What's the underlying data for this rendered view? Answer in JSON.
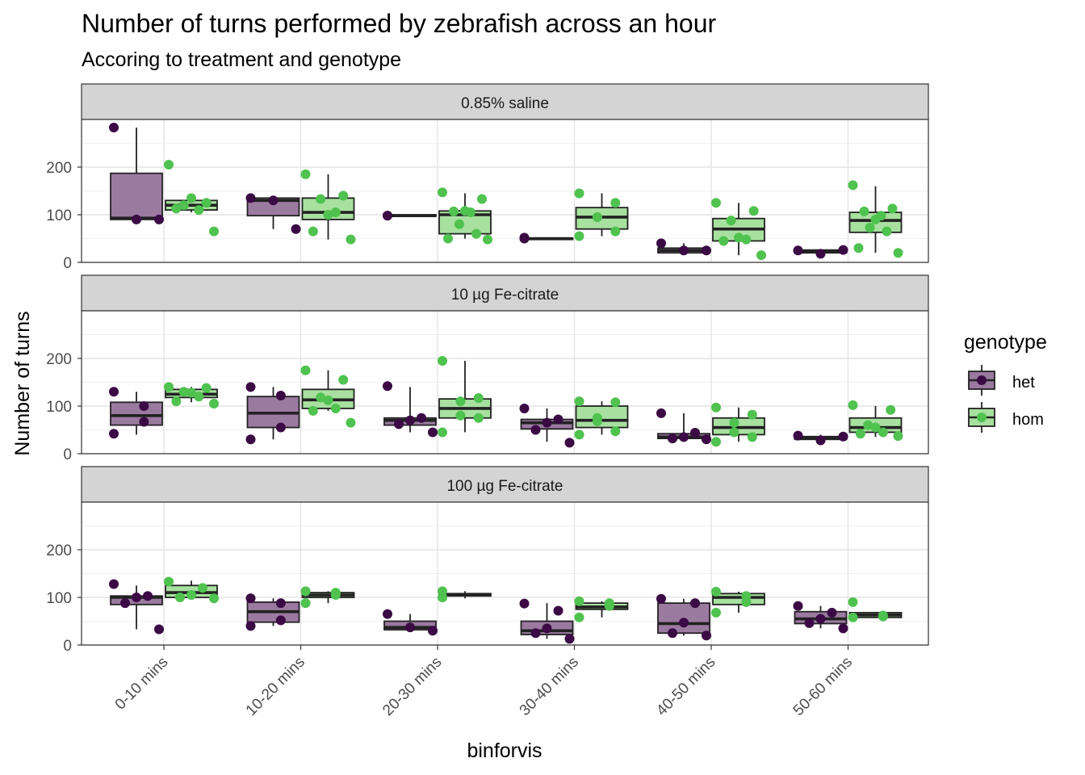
{
  "chart_data": {
    "type": "boxplot",
    "title": "Number of turns performed by zebrafish across an hour",
    "subtitle": "Accoring to treatment and genotype",
    "xlabel": "binforvis",
    "ylabel": "Number of turns",
    "categories": [
      "0-10 mins",
      "10-20 mins",
      "20-30 mins",
      "30-40 mins",
      "40-50 mins",
      "50-60 mins"
    ],
    "ylim": [
      0,
      300
    ],
    "yticks": [
      0,
      100,
      200
    ],
    "grid": true,
    "legend": {
      "title": "genotype",
      "position": "right",
      "items": [
        {
          "label": "het",
          "fill": "#9b7aa0",
          "point": "#3b0a45"
        },
        {
          "label": "hom",
          "fill": "#a8e0a0",
          "point": "#4fc24f"
        }
      ]
    },
    "facets": [
      {
        "label": "0.85% saline",
        "groups": [
          {
            "cat": 0,
            "genotype": "het",
            "box": [
              89,
              90,
              93,
              187,
              283
            ],
            "points": [
              283,
              90,
              90
            ]
          },
          {
            "cat": 0,
            "genotype": "hom",
            "box": [
              105,
              110,
              120,
              130,
              135
            ],
            "points": [
              205,
              125,
              120,
              135,
              110,
              113,
              65
            ]
          },
          {
            "cat": 1,
            "genotype": "het",
            "box": [
              70,
              98,
              130,
              135,
              137
            ],
            "points": [
              135,
              130,
              70
            ]
          },
          {
            "cat": 1,
            "genotype": "hom",
            "box": [
              48,
              90,
              105,
              135,
              185
            ],
            "points": [
              185,
              140,
              133,
              100,
              105,
              65,
              48
            ]
          },
          {
            "cat": 2,
            "genotype": "het",
            "box": [
              97,
              97,
              98,
              100,
              100
            ],
            "points": [
              98,
              98
            ]
          },
          {
            "cat": 2,
            "genotype": "hom",
            "box": [
              50,
              60,
              100,
              108,
              145
            ],
            "points": [
              147,
              133,
              107,
              105,
              108,
              80,
              60,
              50,
              48
            ]
          },
          {
            "cat": 3,
            "genotype": "het",
            "box": [
              48,
              48,
              50,
              51,
              52
            ],
            "points": [
              50,
              52
            ]
          },
          {
            "cat": 3,
            "genotype": "hom",
            "box": [
              55,
              70,
              95,
              115,
              145
            ],
            "points": [
              145,
              125,
              95,
              95,
              65,
              55
            ]
          },
          {
            "cat": 4,
            "genotype": "het",
            "box": [
              20,
              20,
              25,
              30,
              40
            ],
            "points": [
              40,
              25,
              25
            ]
          },
          {
            "cat": 4,
            "genotype": "hom",
            "box": [
              15,
              45,
              70,
              92,
              125
            ],
            "points": [
              125,
              108,
              88,
              52,
              48,
              45,
              15
            ]
          },
          {
            "cat": 5,
            "genotype": "het",
            "box": [
              18,
              20,
              24,
              26,
              28
            ],
            "points": [
              25,
              18,
              26
            ]
          },
          {
            "cat": 5,
            "genotype": "hom",
            "box": [
              20,
              63,
              88,
              105,
              160
            ],
            "points": [
              162,
              113,
              107,
              98,
              90,
              73,
              65,
              30,
              20
            ]
          }
        ]
      },
      {
        "label": "10 µg Fe-citrate",
        "groups": [
          {
            "cat": 0,
            "genotype": "het",
            "box": [
              40,
              60,
              80,
              108,
              130
            ],
            "points": [
              130,
              100,
              67,
              42
            ]
          },
          {
            "cat": 0,
            "genotype": "hom",
            "box": [
              108,
              118,
              125,
              135,
              140
            ],
            "points": [
              140,
              138,
              130,
              128,
              120,
              110,
              105
            ]
          },
          {
            "cat": 1,
            "genotype": "het",
            "box": [
              30,
              55,
              85,
              120,
              140
            ],
            "points": [
              140,
              122,
              55,
              30
            ]
          },
          {
            "cat": 1,
            "genotype": "hom",
            "box": [
              90,
              95,
              113,
              135,
              175
            ],
            "points": [
              175,
              155,
              118,
              112,
              95,
              90,
              65
            ]
          },
          {
            "cat": 2,
            "genotype": "het",
            "box": [
              45,
              60,
              70,
              75,
              140
            ],
            "points": [
              142,
              75,
              70,
              62,
              45
            ]
          },
          {
            "cat": 2,
            "genotype": "hom",
            "box": [
              45,
              75,
              95,
              115,
              195
            ],
            "points": [
              195,
              117,
              110,
              80,
              75,
              45
            ]
          },
          {
            "cat": 3,
            "genotype": "het",
            "box": [
              25,
              52,
              65,
              72,
              95
            ],
            "points": [
              95,
              72,
              65,
              50,
              23
            ]
          },
          {
            "cat": 3,
            "genotype": "hom",
            "box": [
              40,
              55,
              70,
              100,
              110
            ],
            "points": [
              110,
              108,
              75,
              68,
              47,
              40
            ]
          },
          {
            "cat": 4,
            "genotype": "het",
            "box": [
              30,
              32,
              35,
              42,
              85
            ],
            "points": [
              85,
              44,
              35,
              32,
              30
            ]
          },
          {
            "cat": 4,
            "genotype": "hom",
            "box": [
              25,
              40,
              55,
              75,
              97
            ],
            "points": [
              97,
              82,
              65,
              45,
              35,
              25
            ]
          },
          {
            "cat": 5,
            "genotype": "het",
            "box": [
              28,
              30,
              33,
              36,
              40
            ],
            "points": [
              38,
              28,
              36
            ]
          },
          {
            "cat": 5,
            "genotype": "hom",
            "box": [
              35,
              45,
              55,
              75,
              100
            ],
            "points": [
              102,
              92,
              60,
              55,
              45,
              42,
              37
            ]
          }
        ]
      },
      {
        "label": "100 µg Fe-citrate",
        "groups": [
          {
            "cat": 0,
            "genotype": "het",
            "box": [
              33,
              85,
              100,
              103,
              125
            ],
            "points": [
              128,
              103,
              100,
              88,
              33
            ]
          },
          {
            "cat": 0,
            "genotype": "hom",
            "box": [
              98,
              100,
              110,
              125,
              135
            ],
            "points": [
              133,
              120,
              105,
              100,
              98
            ]
          },
          {
            "cat": 1,
            "genotype": "het",
            "box": [
              40,
              48,
              70,
              90,
              98
            ],
            "points": [
              98,
              88,
              52,
              40
            ]
          },
          {
            "cat": 1,
            "genotype": "hom",
            "box": [
              88,
              100,
              105,
              110,
              113
            ],
            "points": [
              113,
              110,
              105,
              88
            ]
          },
          {
            "cat": 2,
            "genotype": "het",
            "box": [
              30,
              32,
              37,
              50,
              65
            ],
            "points": [
              65,
              37,
              30
            ]
          },
          {
            "cat": 2,
            "genotype": "hom",
            "box": [
              98,
              103,
              105,
              108,
              113
            ],
            "points": [
              113,
              100
            ]
          },
          {
            "cat": 3,
            "genotype": "het",
            "box": [
              13,
              22,
              30,
              50,
              88
            ],
            "points": [
              87,
              72,
              35,
              25,
              13
            ]
          },
          {
            "cat": 3,
            "genotype": "hom",
            "box": [
              58,
              75,
              80,
              88,
              92
            ],
            "points": [
              92,
              88,
              82,
              58
            ]
          },
          {
            "cat": 4,
            "genotype": "het",
            "box": [
              20,
              25,
              45,
              88,
              97
            ],
            "points": [
              97,
              88,
              47,
              25,
              20
            ]
          },
          {
            "cat": 4,
            "genotype": "hom",
            "box": [
              68,
              85,
              100,
              108,
              112
            ],
            "points": [
              112,
              103,
              90,
              68
            ]
          },
          {
            "cat": 5,
            "genotype": "het",
            "box": [
              35,
              45,
              55,
              70,
              82
            ],
            "points": [
              82,
              68,
              55,
              46,
              35
            ]
          },
          {
            "cat": 5,
            "genotype": "hom",
            "box": [
              58,
              58,
              63,
              68,
              68
            ],
            "points": [
              90,
              62,
              60,
              58
            ]
          }
        ]
      }
    ]
  }
}
